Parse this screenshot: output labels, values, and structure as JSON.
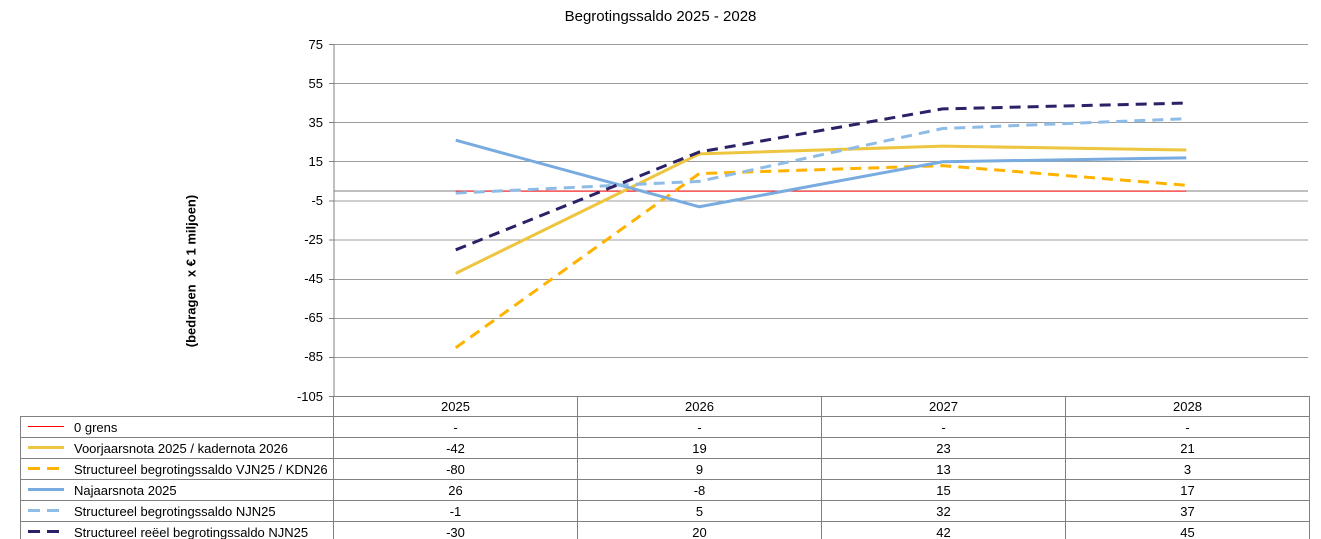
{
  "chart_data": {
    "type": "line",
    "title": "Begrotingssaldo 2025 - 2028",
    "ylabel": "(bedragen  x € 1 miljoen)",
    "xlabel": "",
    "categories": [
      "2025",
      "2026",
      "2027",
      "2028"
    ],
    "ylim": [
      -105,
      75
    ],
    "yticks": [
      75,
      55,
      35,
      15,
      -5,
      -25,
      -45,
      -65,
      -85,
      -105
    ],
    "grid": true,
    "zero_axis": 0,
    "legend_position": "data-table-left-column",
    "series": [
      {
        "name": "0 grens",
        "values": [
          0,
          0,
          0,
          0
        ],
        "display": [
          "-",
          "-",
          "-",
          "-"
        ],
        "color": "#FF0000",
        "style": "solid",
        "width": 1
      },
      {
        "name": "Voorjaarsnota 2025 / kadernota 2026",
        "values": [
          -42,
          19,
          23,
          21
        ],
        "display": [
          "-42",
          "19",
          "23",
          "21"
        ],
        "color": "#EEC53F",
        "style": "solid",
        "width": 3
      },
      {
        "name": "Structureel begrotingssaldo VJN25 / KDN26",
        "values": [
          -80,
          9,
          13,
          3
        ],
        "display": [
          "-80",
          "9",
          "13",
          "3"
        ],
        "color": "#FFB300",
        "style": "dashed",
        "width": 3
      },
      {
        "name": "Najaarsnota 2025",
        "values": [
          26,
          -8,
          15,
          17
        ],
        "display": [
          "26",
          "-8",
          "15",
          "17"
        ],
        "color": "#78ABDF",
        "style": "solid",
        "width": 3
      },
      {
        "name": "Structureel begrotingssaldo NJN25",
        "values": [
          -1,
          5,
          32,
          37
        ],
        "display": [
          "-1",
          "5",
          "32",
          "37"
        ],
        "color": "#8FBCE7",
        "style": "dashed",
        "width": 3
      },
      {
        "name": "Structureel reëel begrotingssaldo NJN25",
        "values": [
          -30,
          20,
          42,
          45
        ],
        "display": [
          "-30",
          "20",
          "42",
          "45"
        ],
        "color": "#2A2166",
        "style": "dashed",
        "width": 3
      }
    ]
  },
  "colors": {
    "background": "#FFFFFF",
    "text": "#000000",
    "gridline": "#9C9C9C",
    "axis": "#808080",
    "table_border": "#808080"
  }
}
